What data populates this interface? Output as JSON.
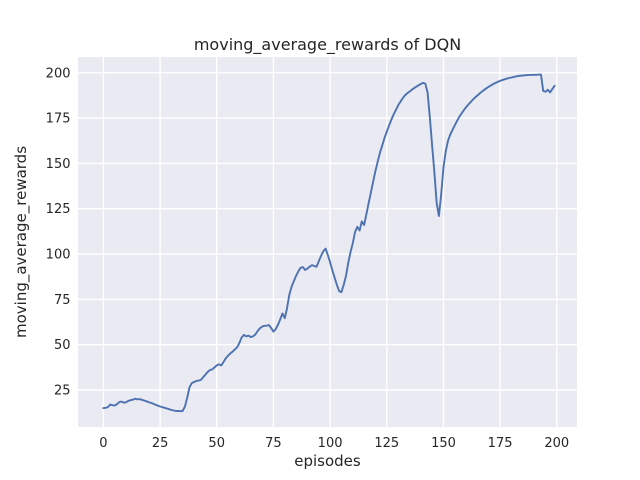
{
  "figure": {
    "background": "#ffffff",
    "axes_background": "#eaeaf2",
    "grid_color": "#ffffff",
    "text_color": "#262626",
    "line_color": "#4c72b0"
  },
  "chart_data": {
    "type": "line",
    "title": "moving_average_rewards of DQN",
    "xlabel": "episodes",
    "ylabel": "moving_average_rewards",
    "grid": true,
    "legend_position": "none",
    "xlim": [
      -11.2,
      208.9
    ],
    "ylim": [
      4.6,
      208.7
    ],
    "xticks": [
      0,
      25,
      50,
      75,
      100,
      125,
      150,
      175,
      200
    ],
    "yticks": [
      25,
      50,
      75,
      100,
      125,
      150,
      175,
      200
    ],
    "series": [
      {
        "name": "moving_average_rewards",
        "color": "#4c72b0",
        "x_start": 0,
        "x_step": 1,
        "y": [
          15.0,
          15.2,
          15.6,
          17.0,
          16.6,
          16.4,
          17.2,
          18.4,
          18.6,
          18.0,
          18.3,
          19.0,
          19.4,
          19.7,
          20.2,
          19.8,
          20.0,
          19.6,
          19.2,
          18.8,
          18.3,
          17.9,
          17.4,
          16.9,
          16.4,
          15.9,
          15.6,
          15.2,
          14.8,
          14.4,
          14.0,
          13.7,
          13.5,
          13.4,
          13.3,
          13.5,
          16.0,
          21.0,
          26.5,
          28.8,
          29.4,
          30.0,
          30.2,
          30.6,
          32.0,
          33.5,
          35.0,
          36.0,
          36.4,
          37.5,
          38.6,
          39.2,
          38.6,
          40.5,
          42.5,
          44.0,
          45.2,
          46.2,
          47.4,
          48.6,
          51.0,
          54.0,
          55.4,
          54.6,
          55.0,
          54.2,
          54.6,
          55.6,
          57.5,
          59.0,
          60.0,
          60.4,
          60.5,
          60.8,
          59.2,
          57.2,
          58.6,
          61.0,
          64.0,
          67.2,
          64.6,
          70.0,
          77.5,
          82.0,
          85.0,
          88.0,
          90.5,
          92.4,
          92.8,
          91.2,
          92.0,
          93.0,
          93.9,
          93.4,
          93.0,
          96.0,
          99.0,
          101.5,
          103.0,
          99.5,
          95.5,
          91.0,
          87.0,
          83.0,
          79.5,
          79.0,
          83.0,
          88.0,
          95.0,
          101.0,
          106.0,
          112.0,
          115.0,
          113.0,
          118.0,
          116.0,
          122.0,
          128.0,
          134.0,
          140.0,
          146.0,
          151.0,
          156.0,
          160.0,
          164.0,
          167.5,
          171.0,
          174.0,
          177.0,
          179.5,
          182.0,
          184.0,
          186.0,
          187.5,
          188.6,
          189.6,
          190.6,
          191.5,
          192.3,
          193.1,
          193.8,
          194.4,
          194.0,
          189.0,
          175.0,
          160.0,
          145.0,
          128.0,
          121.0,
          133.0,
          148.0,
          156.5,
          162.5,
          166.0,
          168.5,
          171.0,
          173.5,
          175.7,
          177.6,
          179.4,
          181.0,
          182.5,
          183.9,
          185.2,
          186.4,
          187.5,
          188.6,
          189.6,
          190.6,
          191.5,
          192.3,
          193.1,
          193.8,
          194.4,
          195.0,
          195.5,
          196.0,
          196.4,
          196.8,
          197.1,
          197.4,
          197.7,
          198.0,
          198.2,
          198.4,
          198.5,
          198.6,
          198.7,
          198.8,
          198.8,
          198.9,
          198.9,
          199.0,
          199.0,
          190.0,
          189.5,
          190.6,
          189.2,
          191.0,
          192.8
        ]
      }
    ]
  }
}
